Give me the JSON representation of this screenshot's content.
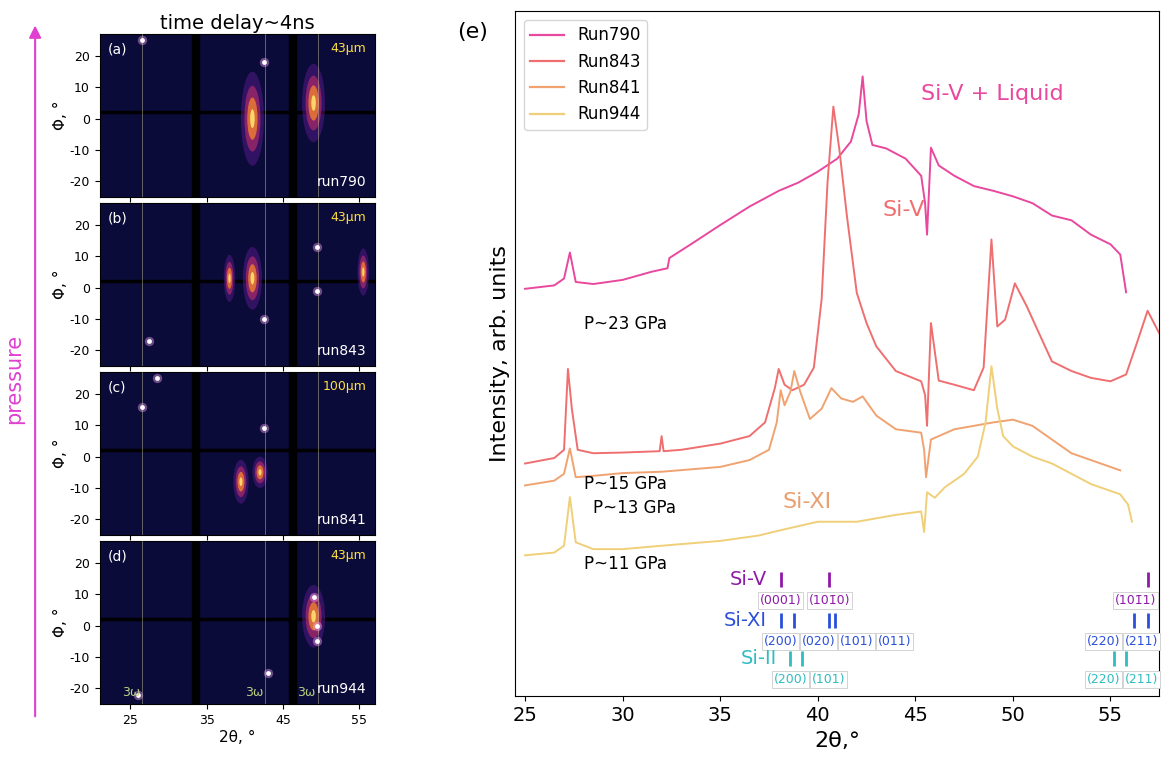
{
  "pressure_label": "pressure",
  "pressure_color": "#e040d0",
  "chart_data": [
    {
      "type": "detector_image",
      "title": "time delay~4ns",
      "label": "(a)",
      "thickness": "43μm",
      "run": "run790",
      "ylabel": "Φ, °",
      "xlim": [
        21,
        57
      ],
      "ylim": [
        -25,
        27
      ],
      "xticks": [
        25,
        35,
        45,
        55
      ],
      "yticks": [
        -20,
        -10,
        0,
        10,
        20
      ],
      "tick_labels": "y",
      "detector_gaps": [
        33.5,
        46.3
      ],
      "shadow_phi": 2,
      "guide_lines": [
        26.6,
        42.7,
        49.6
      ],
      "spots": [
        [
          26.5,
          25
        ],
        [
          42.5,
          18
        ]
      ],
      "streaks": [
        [
          41,
          0,
          3,
          30
        ],
        [
          49,
          5,
          3,
          25
        ]
      ]
    },
    {
      "type": "detector_image",
      "label": "(b)",
      "thickness": "43μm",
      "run": "run843",
      "ylabel": "Φ, °",
      "xlim": [
        21,
        57
      ],
      "ylim": [
        -25,
        27
      ],
      "xticks": [
        25,
        35,
        45,
        55
      ],
      "yticks": [
        -20,
        -10,
        0,
        10,
        20
      ],
      "tick_labels": "y",
      "detector_gaps": [
        33.5,
        46.3
      ],
      "shadow_phi": 2,
      "guide_lines": [
        26.6,
        42.7,
        49.6
      ],
      "spots": [
        [
          27.5,
          -17
        ],
        [
          49.5,
          13
        ],
        [
          49.5,
          -1
        ],
        [
          42.5,
          -10
        ]
      ],
      "streaks": [
        [
          41,
          3,
          2.5,
          20
        ],
        [
          38,
          3,
          1.5,
          15
        ],
        [
          55.5,
          5,
          1.5,
          15
        ]
      ]
    },
    {
      "type": "detector_image",
      "label": "(c)",
      "thickness": "100μm",
      "run": "run841",
      "ylabel": "Φ, °",
      "xlim": [
        21,
        57
      ],
      "ylim": [
        -25,
        27
      ],
      "xticks": [
        25,
        35,
        45,
        55
      ],
      "yticks": [
        -20,
        -10,
        0,
        10,
        20
      ],
      "tick_labels": "y",
      "detector_gaps": [
        33.5,
        46.3
      ],
      "shadow_phi": 2,
      "guide_lines": [
        26.6,
        42.7,
        49.6
      ],
      "spots": [
        [
          26.5,
          16
        ],
        [
          42.5,
          9
        ],
        [
          28.5,
          25
        ]
      ],
      "streaks": [
        [
          39.5,
          -8,
          2,
          14
        ],
        [
          42,
          -5,
          2,
          10
        ]
      ]
    },
    {
      "type": "detector_image",
      "label": "(d)",
      "thickness": "43μm",
      "run": "run944",
      "ylabel": "Φ, °",
      "xlabel": "2θ, °",
      "xlim": [
        21,
        57
      ],
      "ylim": [
        -25,
        27
      ],
      "xticks": [
        25,
        35,
        45,
        55
      ],
      "yticks": [
        -20,
        -10,
        0,
        10,
        20
      ],
      "detector_gaps": [
        33.5,
        46.3
      ],
      "shadow_phi": 2,
      "guide_lines": [
        26.6,
        42.7,
        49.6
      ],
      "guide_label": "3ω",
      "spots": [
        [
          26,
          -22
        ],
        [
          49,
          9
        ],
        [
          49.5,
          -5
        ],
        [
          49.5,
          0
        ],
        [
          43,
          -15
        ]
      ],
      "streaks": [
        [
          49,
          3,
          3,
          20
        ]
      ]
    },
    {
      "type": "line",
      "label": "(e)",
      "xlabel": "2θ,°",
      "ylabel": "Intensity, arb. units",
      "xlim": [
        24.5,
        57.5
      ],
      "ylim": [
        0,
        100
      ],
      "xticks": [
        25,
        30,
        35,
        40,
        45,
        50,
        55
      ],
      "tick_labels": "x",
      "legend": "upper left",
      "series": [
        {
          "name": "Run790",
          "color": "#e8489e",
          "x": [
            25,
            26.5,
            27.0,
            27.3,
            27.6,
            28.5,
            30,
            31.5,
            32.3,
            32.4,
            33.5,
            35,
            36.5,
            38,
            39,
            40,
            41,
            41.7,
            42.1,
            42.3,
            42.5,
            42.8,
            43.5,
            44.5,
            45.3,
            45.5,
            45.6,
            45.8,
            46.2,
            47,
            48,
            49,
            50,
            51,
            52,
            53,
            54,
            55,
            55.5,
            55.8
          ],
          "values": [
            59.5,
            60.0,
            61.0,
            64.8,
            60.5,
            60.2,
            60.8,
            62.0,
            62.5,
            64.0,
            66.0,
            68.8,
            71.5,
            73.8,
            75.0,
            76.6,
            78.5,
            81.0,
            85.0,
            90.5,
            84.0,
            80.5,
            80.0,
            78.5,
            76.0,
            72.0,
            67.4,
            80.1,
            77.5,
            76.0,
            74.5,
            73.8,
            73.0,
            72.0,
            70.2,
            69.5,
            67.4,
            66.0,
            64.5,
            59.0
          ]
        },
        {
          "name": "Run843",
          "color": "#ef6f70",
          "x": [
            25,
            26.5,
            27.0,
            27.2,
            27.4,
            27.7,
            28.5,
            30,
            31.9,
            32.0,
            32.1,
            33,
            35,
            36.5,
            37.3,
            37.8,
            38.0,
            38.3,
            38.7,
            39.3,
            39.8,
            40.2,
            40.5,
            40.8,
            41.1,
            41.5,
            42,
            42.5,
            43,
            44,
            45.3,
            45.5,
            45.6,
            45.8,
            46.2,
            47,
            48,
            48.5,
            48.9,
            49.2,
            49.6,
            50.1,
            50.7,
            51.5,
            52,
            53,
            54,
            55,
            55.8,
            56.4,
            56.9,
            57.5
          ],
          "values": [
            34.0,
            34.8,
            36.0,
            47.8,
            42.0,
            36.0,
            35.5,
            35.6,
            35.8,
            38.0,
            35.8,
            36.0,
            36.9,
            38.0,
            40.0,
            45.0,
            47.8,
            45.5,
            44.7,
            45.5,
            48.0,
            58.0,
            75.0,
            86.1,
            80.0,
            70.0,
            58.9,
            54.5,
            51.1,
            47.5,
            46.0,
            44.0,
            39.5,
            54.5,
            46.1,
            45.5,
            44.7,
            48.0,
            66.7,
            54.0,
            55.0,
            60.3,
            57.0,
            52.0,
            48.9,
            47.5,
            46.5,
            46.0,
            47.0,
            52.0,
            56.3,
            53.0
          ]
        },
        {
          "name": "Run841",
          "color": "#f0a370",
          "x": [
            25,
            26.5,
            27.0,
            27.3,
            27.6,
            28.5,
            30,
            32,
            35,
            36.5,
            37.5,
            37.9,
            38.1,
            38.3,
            38.6,
            38.8,
            39.1,
            39.6,
            40.2,
            40.7,
            41.2,
            41.8,
            42.3,
            43,
            44,
            45.3,
            45.45,
            45.55,
            45.8,
            47,
            48,
            49,
            50,
            51,
            52,
            53,
            54,
            55,
            55.5
          ],
          "values": [
            30.8,
            31.5,
            32.5,
            36.2,
            32.0,
            32.2,
            32.6,
            32.8,
            33.5,
            34.5,
            36.0,
            40.0,
            44.7,
            42.5,
            44.5,
            47.5,
            44.5,
            40.5,
            42.0,
            45.0,
            43.5,
            43.0,
            43.8,
            41.0,
            39.0,
            38.5,
            36.0,
            32.0,
            37.5,
            39.0,
            39.5,
            40.0,
            40.4,
            39.5,
            37.5,
            35.5,
            34.5,
            33.5,
            33.0
          ]
        },
        {
          "name": "Run944",
          "color": "#efcf78",
          "x": [
            25,
            26.5,
            27.0,
            27.3,
            27.6,
            28.5,
            30,
            32,
            35,
            37,
            38,
            40,
            42,
            44,
            45.3,
            45.45,
            45.6,
            46.0,
            46.5,
            47.5,
            48.2,
            48.6,
            48.9,
            49.2,
            49.5,
            50,
            51,
            52,
            53,
            54,
            55,
            55.5,
            55.9,
            56.1
          ],
          "values": [
            20.6,
            21.0,
            22.0,
            29.1,
            22.5,
            21.5,
            21.5,
            22.0,
            22.7,
            23.5,
            24.2,
            25.5,
            25.5,
            26.5,
            27.0,
            24.0,
            29.8,
            29.0,
            30.5,
            32.5,
            35.0,
            40.0,
            48.2,
            42.0,
            38.0,
            36.5,
            35.0,
            34.0,
            32.5,
            31.0,
            30.0,
            29.5,
            28.0,
            25.5
          ]
        }
      ],
      "annotations": [
        {
          "text": "Si-V + Liquid",
          "x": 45.3,
          "y": 88.0,
          "color": "#e8489e"
        },
        {
          "text": "Si-V",
          "x": 43.3,
          "y": 71.0,
          "color": "#ef6f70"
        },
        {
          "text": "Si-XI",
          "x": 38.2,
          "y": 28.4,
          "color": "#e8a070"
        },
        {
          "text": "P~23 GPa",
          "x": 28.0,
          "y": 54.3,
          "color": "#000000"
        },
        {
          "text": "P~15 GPa",
          "x": 28.0,
          "y": 31.0,
          "color": "#000000"
        },
        {
          "text": "P~13 GPa",
          "x": 28.5,
          "y": 27.5,
          "color": "#000000"
        },
        {
          "text": "P~11 GPa",
          "x": 28.0,
          "y": 19.3,
          "color": "#000000"
        }
      ],
      "references": [
        {
          "name": "Si-V",
          "color": "#8e1aa8",
          "y": 16.0,
          "positions": [
            38.1,
            40.6,
            56.9
          ],
          "labels": [
            "(0001)",
            "(101̄0)",
            "(101̄1)"
          ]
        },
        {
          "name": "Si-XI",
          "color": "#2a4fd9",
          "y": 10.0,
          "positions": [
            38.1,
            38.8,
            40.6,
            40.9,
            56.2,
            56.9
          ],
          "labels": [
            "(200)",
            "(020)",
            "(101)",
            "(011)",
            "(220)",
            "(211)"
          ]
        },
        {
          "name": "Si-II",
          "color": "#30bcc0",
          "y": 4.5,
          "positions": [
            38.6,
            39.2,
            55.2,
            55.8
          ],
          "labels": [
            "(200)",
            "(101)",
            "(220)",
            "(211)"
          ]
        }
      ]
    }
  ]
}
